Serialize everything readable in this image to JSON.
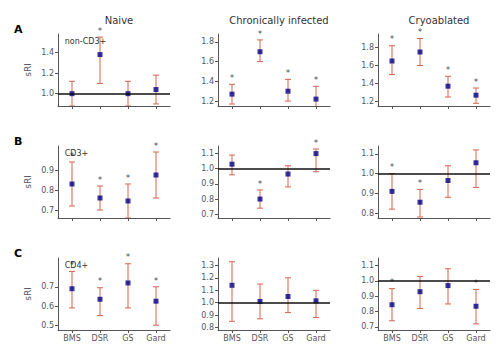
{
  "chart_data": [
    {
      "type": "scatter",
      "title": "Naive",
      "annotations": [
        {
          "text": "A"
        },
        {
          "text": "*",
          "category": "DSR",
          "color": "#111111"
        }
      ],
      "subtitle": "non-CD3+",
      "ylabel": "sRI",
      "categories": [
        "BMS",
        "DSR",
        "GS",
        "Gard"
      ],
      "values": [
        1.0,
        1.38,
        1.0,
        1.04
      ],
      "lo": [
        0.88,
        1.1,
        0.88,
        0.9
      ],
      "hi": [
        1.12,
        1.55,
        1.12,
        1.18
      ],
      "color": "#00008B",
      "error_color": "#D9634C",
      "ylim": [
        0.88,
        1.58
      ],
      "yticks": [
        {
          "value": 1.0,
          "label": "1.0"
        },
        1.2,
        1.4
      ],
      "hline": 1.0,
      "hline_color": "#111111",
      "grid": false,
      "tick_labels": "y"
    },
    {
      "type": "scatter",
      "title": "Chronically infected",
      "annotations": [
        {
          "text": "*",
          "category": "BMS",
          "color": "#111111"
        },
        {
          "text": "*",
          "category": "DSR",
          "color": "#111111"
        },
        {
          "text": "*",
          "category": "GS",
          "color": "#111111"
        },
        {
          "text": "*",
          "category": "Gard",
          "color": "#111111"
        }
      ],
      "categories": [
        "BMS",
        "DSR",
        "GS",
        "Gard"
      ],
      "values": [
        1.27,
        1.7,
        1.3,
        1.22
      ],
      "lo": [
        1.17,
        1.6,
        1.2,
        1.12
      ],
      "hi": [
        1.37,
        1.82,
        1.42,
        1.35
      ],
      "color": "#00008B",
      "error_color": "#D9634C",
      "ylim": [
        1.15,
        1.88
      ],
      "yticks": [
        1.2,
        1.4,
        1.6,
        1.8
      ],
      "grid": false,
      "tick_labels": "y"
    },
    {
      "type": "scatter",
      "title": "Cryoablated",
      "annotations": [
        {
          "text": "*",
          "category": "BMS",
          "color": "#111111"
        },
        {
          "text": "*",
          "category": "DSR",
          "color": "#111111"
        },
        {
          "text": "*",
          "category": "GS",
          "color": "#111111"
        },
        {
          "text": "*",
          "category": "Gard",
          "color": "#111111"
        }
      ],
      "categories": [
        "BMS",
        "DSR",
        "GS",
        "Gard"
      ],
      "values": [
        1.65,
        1.75,
        1.37,
        1.27
      ],
      "lo": [
        1.5,
        1.6,
        1.25,
        1.18
      ],
      "hi": [
        1.82,
        1.9,
        1.48,
        1.35
      ],
      "color": "#00008B",
      "error_color": "#D9634C",
      "ylim": [
        1.15,
        1.95
      ],
      "yticks": [
        1.2,
        1.4,
        1.6,
        1.8
      ],
      "grid": false,
      "tick_labels": "y"
    },
    {
      "type": "scatter",
      "annotations": [
        {
          "text": "B"
        },
        {
          "text": "*",
          "category": "BMS",
          "color": "#111111"
        },
        {
          "text": "*",
          "category": "DSR",
          "color": "#111111"
        },
        {
          "text": "*",
          "category": "GS",
          "color": "#111111"
        },
        {
          "text": "*",
          "category": "Gard",
          "color": "#111111"
        }
      ],
      "subtitle": "CD3+",
      "ylabel": "sRI",
      "categories": [
        "BMS",
        "DSR",
        "GS",
        "Gard"
      ],
      "values": [
        0.83,
        0.76,
        0.745,
        0.875
      ],
      "lo": [
        0.72,
        0.7,
        0.66,
        0.76
      ],
      "hi": [
        0.94,
        0.82,
        0.83,
        0.99
      ],
      "color": "#00008B",
      "error_color": "#D9634C",
      "ylim": [
        0.66,
        1.02
      ],
      "yticks": [
        0.7,
        0.8,
        0.9
      ],
      "grid": false,
      "tick_labels": "y"
    },
    {
      "type": "scatter",
      "annotations": [
        {
          "text": "*",
          "category": "DSR",
          "color": "#111111"
        },
        {
          "text": "*",
          "category": "Gard",
          "color": "#111111"
        }
      ],
      "categories": [
        "BMS",
        "DSR",
        "GS",
        "Gard"
      ],
      "values": [
        1.03,
        0.8,
        0.965,
        1.1
      ],
      "lo": [
        0.96,
        0.74,
        0.88,
        0.98
      ],
      "hi": [
        1.09,
        0.86,
        1.02,
        1.13
      ],
      "color": "#00008B",
      "error_color": "#D9634C",
      "ylim": [
        0.675,
        1.15
      ],
      "yticks": [
        0.7,
        0.8,
        0.9,
        {
          "value": 1.0,
          "label": "1.0"
        },
        1.1
      ],
      "hline": 1.0,
      "hline_color": "#111111",
      "grid": false,
      "tick_labels": "y"
    },
    {
      "type": "scatter",
      "annotations": [
        {
          "text": "*",
          "category": "BMS",
          "color": "#111111"
        },
        {
          "text": "*",
          "category": "DSR",
          "color": "#111111"
        }
      ],
      "categories": [
        "BMS",
        "DSR",
        "GS",
        "Gard"
      ],
      "values": [
        0.91,
        0.855,
        0.965,
        1.055
      ],
      "lo": [
        0.82,
        0.78,
        0.88,
        0.93
      ],
      "hi": [
        1.0,
        0.92,
        1.04,
        1.12
      ],
      "color": "#00008B",
      "error_color": "#D9634C",
      "ylim": [
        0.775,
        1.14
      ],
      "yticks": [
        0.8,
        0.9,
        {
          "value": 1.0,
          "label": "1.0"
        },
        1.1
      ],
      "hline": 1.0,
      "hline_color": "#111111",
      "grid": false,
      "tick_labels": "y"
    },
    {
      "type": "scatter",
      "annotations": [
        {
          "text": "C"
        },
        {
          "text": "*",
          "category": "BMS",
          "color": "#111111"
        },
        {
          "text": "*",
          "category": "DSR",
          "color": "#111111"
        },
        {
          "text": "*",
          "category": "GS",
          "color": "#111111"
        },
        {
          "text": "*",
          "category": "Gard",
          "color": "#111111"
        }
      ],
      "subtitle": "CD4+",
      "ylabel": "sRI",
      "categories": [
        "BMS",
        "DSR",
        "GS",
        "Gard"
      ],
      "values": [
        0.69,
        0.635,
        0.72,
        0.625
      ],
      "lo": [
        0.59,
        0.55,
        0.59,
        0.5
      ],
      "hi": [
        0.78,
        0.695,
        0.82,
        0.7
      ],
      "color": "#00008B",
      "error_color": "#D9634C",
      "ylim": [
        0.475,
        0.85
      ],
      "yticks": [
        0.5,
        0.6,
        0.7
      ],
      "grid": false
    },
    {
      "type": "scatter",
      "annotations": [],
      "categories": [
        "BMS",
        "DSR",
        "GS",
        "Gard"
      ],
      "values": [
        1.14,
        1.01,
        1.05,
        1.015
      ],
      "lo": [
        0.85,
        0.87,
        0.92,
        0.88
      ],
      "hi": [
        1.33,
        1.15,
        1.2,
        1.1
      ],
      "color": "#00008B",
      "error_color": "#D9634C",
      "ylim": [
        0.78,
        1.36
      ],
      "yticks": [
        0.8,
        0.9,
        {
          "value": 1.0,
          "label": "1.0"
        },
        1.1,
        1.2,
        1.3
      ],
      "hline": 1.0,
      "hline_color": "#111111",
      "grid": false
    },
    {
      "type": "scatter",
      "annotations": [
        {
          "text": "*",
          "category": "BMS",
          "color": "#111111"
        },
        {
          "text": "*",
          "category": "Gard",
          "color": "#111111"
        }
      ],
      "categories": [
        "BMS",
        "DSR",
        "GS",
        "Gard"
      ],
      "values": [
        0.845,
        0.93,
        0.97,
        0.835
      ],
      "lo": [
        0.74,
        0.82,
        0.85,
        0.72
      ],
      "hi": [
        0.95,
        1.03,
        1.08,
        0.945
      ],
      "color": "#00008B",
      "error_color": "#D9634C",
      "ylim": [
        0.68,
        1.15
      ],
      "yticks": [
        0.7,
        0.8,
        0.9,
        {
          "value": 1.0,
          "label": "1.0"
        },
        1.1
      ],
      "hline": 1.0,
      "hline_color": "#111111",
      "grid": false
    }
  ]
}
